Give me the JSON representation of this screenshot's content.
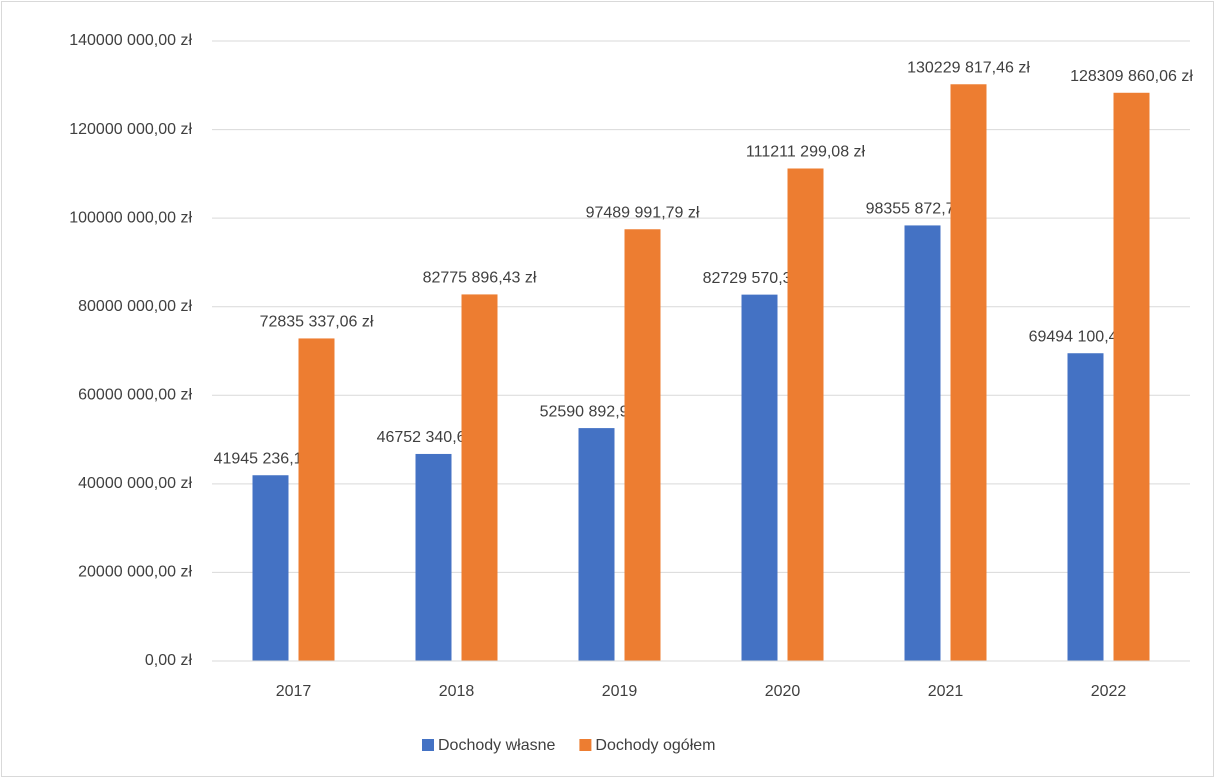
{
  "chart_data": {
    "type": "bar",
    "categories": [
      "2017",
      "2018",
      "2019",
      "2020",
      "2021",
      "2022"
    ],
    "series": [
      {
        "name": "Dochody własne",
        "color": "#4472c4",
        "values": [
          41945236.17,
          46752340.64,
          52590892.99,
          82729570.36,
          98355872.7,
          69494100.49
        ],
        "value_labels": [
          "41945 236,17 zł",
          "46752 340,64 zł",
          "52590 892,99 zł",
          "82729 570,36 zł",
          "98355 872,70 zł",
          "69494 100,49 zł"
        ]
      },
      {
        "name": "Dochody ogółem",
        "color": "#ed7d31",
        "values": [
          72835337.06,
          82775896.43,
          97489991.79,
          111211299.08,
          130229817.46,
          128309860.06
        ],
        "value_labels": [
          "72835 337,06 zł",
          "82775 896,43 zł",
          "97489 991,79 zł",
          "111211 299,08 zł",
          "130229 817,46 zł",
          "128309 860,06 zł"
        ]
      }
    ],
    "ylim": [
      0,
      140000000
    ],
    "yticks": [
      {
        "value": 0,
        "label": "0,00 zł"
      },
      {
        "value": 20000000,
        "label": "20000 000,00 zł"
      },
      {
        "value": 40000000,
        "label": "40000 000,00 zł"
      },
      {
        "value": 60000000,
        "label": "60000 000,00 zł"
      },
      {
        "value": 80000000,
        "label": "80000 000,00 zł"
      },
      {
        "value": 100000000,
        "label": "100000 000,00 zł"
      },
      {
        "value": 120000000,
        "label": "120000 000,00 zł"
      },
      {
        "value": 140000000,
        "label": "140000 000,00 zł"
      }
    ],
    "grid": true,
    "legend": "bottom"
  }
}
